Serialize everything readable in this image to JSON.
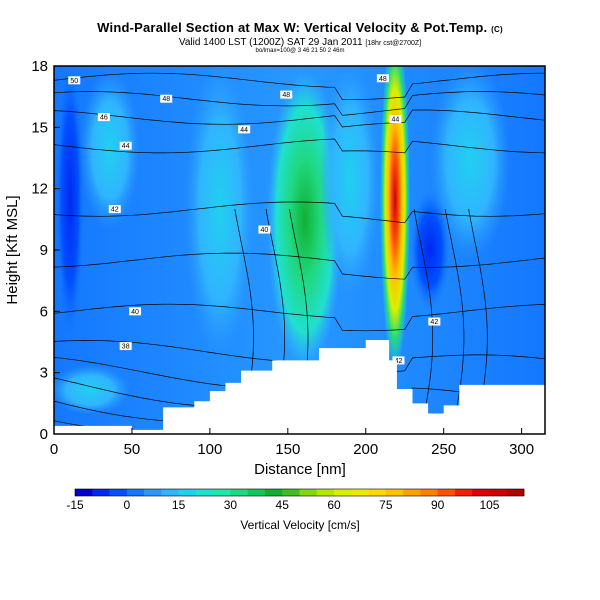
{
  "header": {
    "title": "Wind-Parallel Section at Max W: Vertical Velocity & Pot.Temp.",
    "title_mark": "(C)",
    "subtitle": "Valid 1400 LST (1200Z) SAT 29 Jan 2011",
    "subtitle_note": "[18hr cst@2700Z]",
    "sub_detail": "bo/lmax=100@ 3 46 21 50 2 46m"
  },
  "chart_data": {
    "type": "heatmap",
    "title": "Wind-Parallel Section at Max W: Vertical Velocity & Pot.Temp.",
    "xlabel": "Distance [nm]",
    "ylabel": "Height [Kft MSL]",
    "xlim": [
      0,
      315
    ],
    "ylim": [
      0,
      18
    ],
    "xticks": [
      0,
      50,
      100,
      150,
      200,
      250,
      300
    ],
    "yticks": [
      0,
      3,
      6,
      9,
      12,
      15,
      18
    ],
    "colorbar": {
      "label": "Vertical Velocity [cm/s]",
      "tick_values": [
        -15,
        0,
        15,
        30,
        45,
        60,
        75,
        90,
        105
      ],
      "levels": [
        -15,
        -10,
        -5,
        0,
        5,
        10,
        15,
        20,
        25,
        30,
        35,
        40,
        45,
        50,
        55,
        60,
        65,
        70,
        75,
        80,
        85,
        90,
        95,
        100,
        105,
        110,
        115
      ],
      "colors": [
        "#0000cd",
        "#0028f0",
        "#0050ff",
        "#1478ff",
        "#2898ff",
        "#30b4ff",
        "#20d0f0",
        "#20e0d0",
        "#20e8a8",
        "#20d880",
        "#10c858",
        "#10b030",
        "#40c020",
        "#80d810",
        "#b0e800",
        "#d8f000",
        "#f0e800",
        "#ffd800",
        "#ffc000",
        "#ffa000",
        "#ff8000",
        "#ff5000",
        "#f02000",
        "#e00000",
        "#cc0000",
        "#b00000"
      ]
    },
    "isentrope_labels": [
      {
        "label": "50",
        "x": 13,
        "y": 17.3
      },
      {
        "label": "48",
        "x": 72,
        "y": 16.4
      },
      {
        "label": "46",
        "x": 32,
        "y": 15.5
      },
      {
        "label": "44",
        "x": 46,
        "y": 14.1
      },
      {
        "label": "42",
        "x": 39,
        "y": 11.0
      },
      {
        "label": "40",
        "x": 52,
        "y": 6.0
      },
      {
        "label": "38",
        "x": 46,
        "y": 4.3
      },
      {
        "label": "48",
        "x": 149,
        "y": 16.6
      },
      {
        "label": "44",
        "x": 122,
        "y": 14.9
      },
      {
        "label": "40",
        "x": 135,
        "y": 10.0
      },
      {
        "label": "48",
        "x": 211,
        "y": 17.4
      },
      {
        "label": "44",
        "x": 219,
        "y": 15.4
      },
      {
        "label": "42",
        "x": 244,
        "y": 5.5
      },
      {
        "label": "42",
        "x": 221,
        "y": 3.6
      }
    ],
    "terrain_height_kft": [
      [
        0,
        0.4
      ],
      [
        10,
        0.4
      ],
      [
        20,
        0.4
      ],
      [
        30,
        0.4
      ],
      [
        50,
        0.2
      ],
      [
        60,
        0.2
      ],
      [
        70,
        1.3
      ],
      [
        90,
        1.6
      ],
      [
        100,
        2.1
      ],
      [
        110,
        2.5
      ],
      [
        120,
        3.1
      ],
      [
        140,
        3.6
      ],
      [
        160,
        3.6
      ],
      [
        170,
        4.2
      ],
      [
        190,
        4.2
      ],
      [
        200,
        4.6
      ],
      [
        210,
        4.6
      ],
      [
        215,
        3.6
      ],
      [
        220,
        2.2
      ],
      [
        230,
        1.5
      ],
      [
        240,
        1.0
      ],
      [
        250,
        1.4
      ],
      [
        260,
        2.4
      ],
      [
        305,
        2.4
      ],
      [
        315,
        2.7
      ]
    ]
  }
}
